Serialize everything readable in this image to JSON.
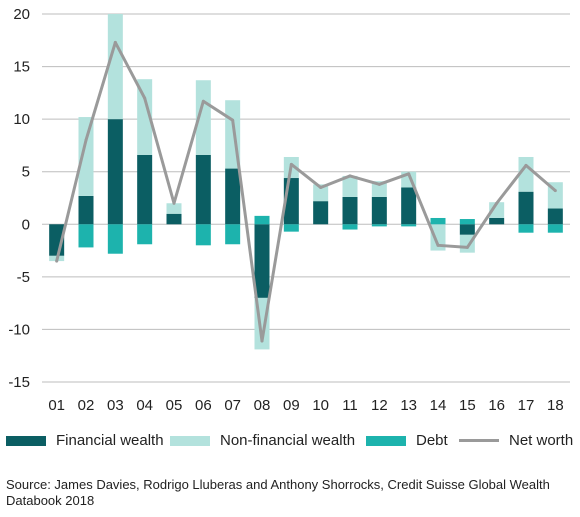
{
  "chart_data": {
    "type": "bar",
    "categories": [
      "01",
      "02",
      "03",
      "04",
      "05",
      "06",
      "07",
      "08",
      "09",
      "10",
      "11",
      "12",
      "13",
      "14",
      "15",
      "16",
      "17",
      "18"
    ],
    "series": [
      {
        "name": "Financial wealth",
        "kind": "bar",
        "color": "#0b5e63",
        "values": [
          -3.0,
          2.7,
          10.0,
          6.6,
          1.0,
          6.6,
          5.3,
          -7.0,
          4.4,
          2.2,
          2.6,
          2.6,
          3.5,
          0.0,
          -1.0,
          0.6,
          3.1,
          1.5
        ]
      },
      {
        "name": "Non-financial wealth",
        "kind": "bar",
        "color": "#b3e2dd",
        "values": [
          -0.5,
          7.5,
          10.0,
          7.2,
          1.0,
          7.1,
          6.5,
          -4.9,
          2.0,
          1.6,
          2.0,
          1.5,
          1.5,
          -2.5,
          -1.7,
          1.5,
          3.3,
          2.5
        ]
      },
      {
        "name": "Debt",
        "kind": "bar",
        "color": "#1db3ad",
        "values": [
          0.0,
          -2.2,
          -2.8,
          -1.9,
          0.0,
          -2.0,
          -1.9,
          0.8,
          -0.7,
          0.0,
          -0.5,
          -0.2,
          -0.2,
          0.6,
          0.5,
          0.0,
          -0.8,
          -0.8
        ]
      },
      {
        "name": "Net worth",
        "kind": "line",
        "color": "#9a9a9a",
        "values": [
          -3.5,
          8.0,
          17.3,
          12.0,
          2.0,
          11.7,
          9.9,
          -11.1,
          5.7,
          3.5,
          4.6,
          3.8,
          4.8,
          -2.0,
          -2.2,
          2.0,
          5.6,
          3.2
        ]
      }
    ],
    "ylim": [
      -15,
      20
    ],
    "yticks": [
      -15,
      -10,
      -5,
      0,
      5,
      10,
      15,
      20
    ],
    "grid": true,
    "legend_position": "bottom",
    "title": "",
    "xlabel": "",
    "ylabel": ""
  },
  "source": "Source: James Davies, Rodrigo Lluberas and Anthony Shorrocks, Credit Suisse Global Wealth Databook 2018"
}
